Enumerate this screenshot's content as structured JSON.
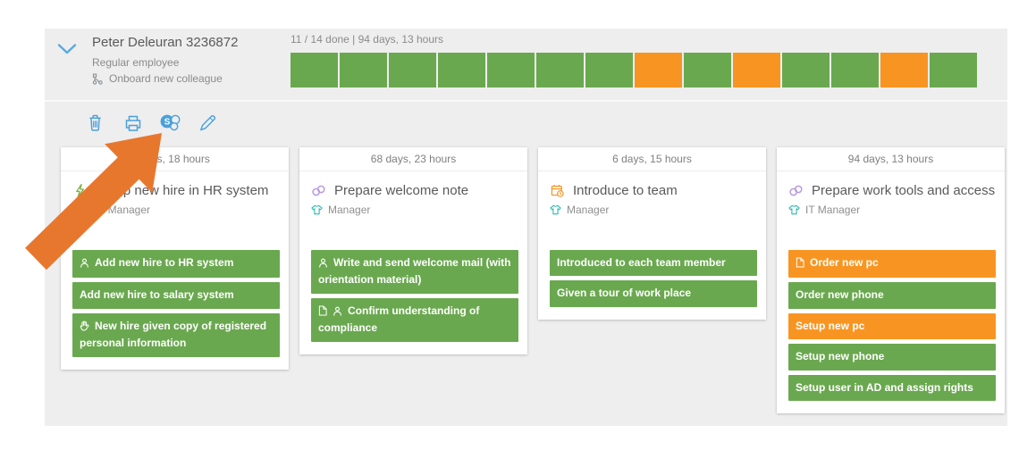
{
  "colors": {
    "green": "#6aa84f",
    "orange": "#f89522",
    "blue": "#4aa0db",
    "arrow_orange": "#e8772e",
    "panel_gray": "#eeeeee",
    "teal": "#2cb9b0",
    "purple": "#b79be0",
    "lightning_green": "#7cb342"
  },
  "header": {
    "name": "Peter Deleuran 3236872",
    "employee_type": "Regular employee",
    "process_icon": "branch",
    "process_name": "Onboard new colleague",
    "progress_text": "11 / 14 done  |  94 days, 13 hours",
    "progress_segments": [
      "done",
      "done",
      "done",
      "done",
      "done",
      "done",
      "done",
      "pending",
      "done",
      "pending",
      "done",
      "done",
      "pending",
      "done"
    ]
  },
  "toolbar": {
    "buttons": [
      {
        "name": "delete",
        "icon": "trash"
      },
      {
        "name": "print",
        "icon": "printer"
      },
      {
        "name": "sharepoint",
        "icon": "sharepoint"
      },
      {
        "name": "edit",
        "icon": "pencil"
      }
    ]
  },
  "annotation_arrow": {
    "points_to": "sharepoint-button"
  },
  "cards": [
    {
      "duration": "days, 18 hours",
      "title_icon": "lightning",
      "title": "Setup new hire in HR system",
      "role": "HR Manager",
      "tasks": [
        {
          "label": "Add new hire to HR system",
          "icons": [
            "person"
          ],
          "status": "done"
        },
        {
          "label": "Add new hire to salary system",
          "icons": [],
          "status": "done"
        },
        {
          "label": "New hire given copy of registered personal information",
          "icons": [
            "hand"
          ],
          "status": "done"
        }
      ]
    },
    {
      "duration": "68 days, 23 hours",
      "title_icon": "link",
      "title": "Prepare welcome note",
      "role": "Manager",
      "tasks": [
        {
          "label": "Write and send welcome mail (with orientation material)",
          "icons": [
            "person"
          ],
          "status": "done"
        },
        {
          "label": "Confirm understanding of compliance",
          "icons": [
            "document",
            "person"
          ],
          "status": "done"
        }
      ]
    },
    {
      "duration": "6 days, 15 hours",
      "title_icon": "calendar",
      "title": "Introduce to team",
      "role": "Manager",
      "tasks": [
        {
          "label": "Introduced to each team member",
          "icons": [],
          "status": "done"
        },
        {
          "label": "Given a tour of work place",
          "icons": [],
          "status": "done"
        }
      ]
    },
    {
      "duration": "94 days, 13 hours",
      "title_icon": "link",
      "title": "Prepare work tools and access",
      "role": "IT Manager",
      "tasks": [
        {
          "label": "Order new pc",
          "icons": [
            "document"
          ],
          "status": "pending"
        },
        {
          "label": "Order new phone",
          "icons": [],
          "status": "done"
        },
        {
          "label": "Setup new pc",
          "icons": [],
          "status": "pending"
        },
        {
          "label": "Setup new phone",
          "icons": [],
          "status": "done"
        },
        {
          "label": "Setup user in AD and assign rights",
          "icons": [],
          "status": "done"
        }
      ]
    }
  ]
}
